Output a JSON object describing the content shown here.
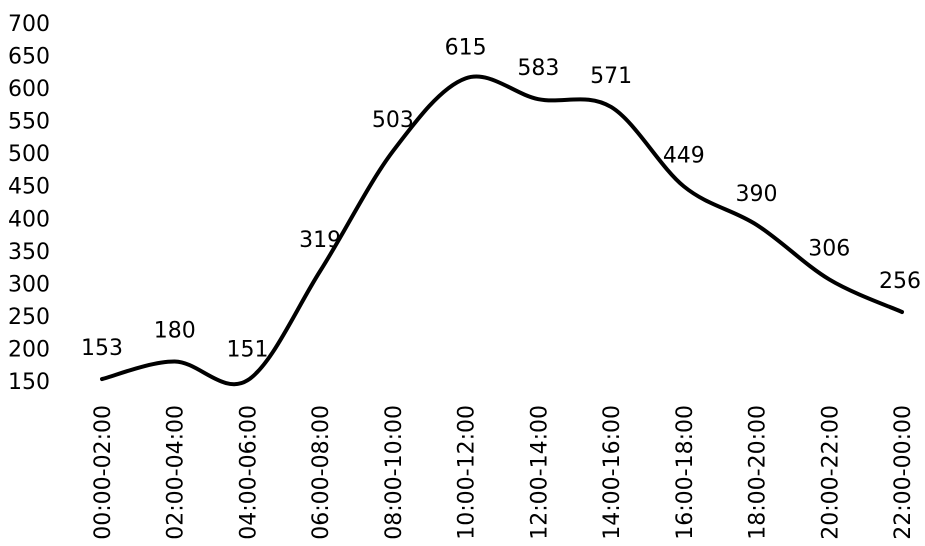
{
  "chart_data": {
    "type": "line",
    "title": "",
    "xlabel": "",
    "ylabel": "",
    "categories": [
      "00:00-02:00",
      "02:00-04:00",
      "04:00-06:00",
      "06:00-08:00",
      "08:00-10:00",
      "10:00-12:00",
      "12:00-14:00",
      "14:00-16:00",
      "16:00-18:00",
      "18:00-20:00",
      "20:00-22:00",
      "22:00-00:00"
    ],
    "series": [
      {
        "values": [
          153,
          180,
          151,
          319,
          503,
          615,
          583,
          571,
          449,
          390,
          306,
          256
        ]
      }
    ],
    "ylim": [
      150,
      700
    ],
    "yticks": [
      150,
      200,
      250,
      300,
      350,
      400,
      450,
      500,
      550,
      600,
      650,
      700
    ],
    "grid": false,
    "legend": "none",
    "line_color": "#000000",
    "smooth": true
  }
}
